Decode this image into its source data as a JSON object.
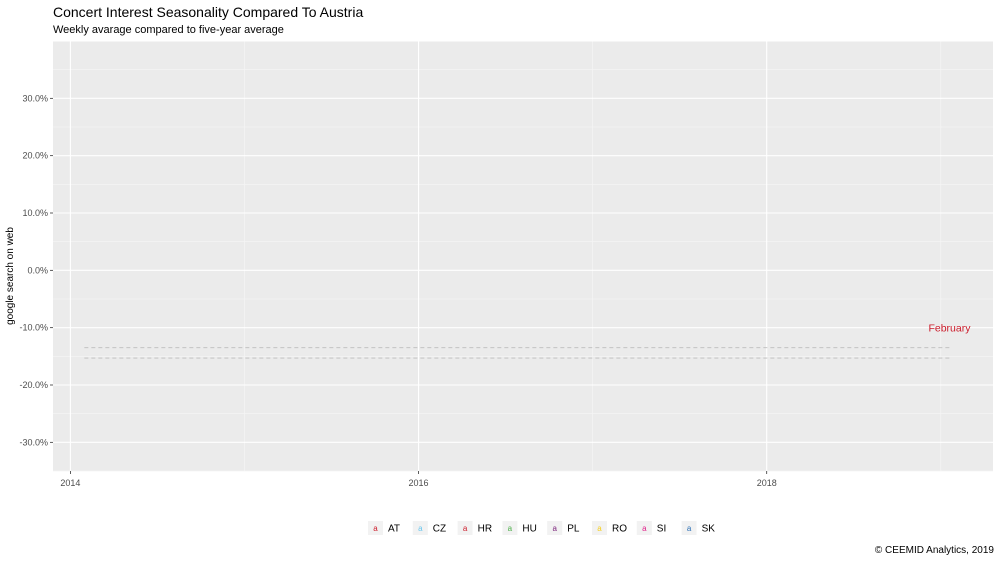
{
  "chart_data": {
    "type": "line",
    "title": "Concert Interest Seasonality Compared To Austria",
    "subtitle": "Weekly avarage compared to five-year average",
    "ylabel": "google search on web",
    "xlabel": "",
    "caption": "© CEEMID Analytics, 2019",
    "x_range": [
      2013.9,
      2019.3
    ],
    "ylim": [
      -35,
      40
    ],
    "x_ticks": [
      {
        "value": 2014,
        "label": "2014"
      },
      {
        "value": 2016,
        "label": "2016"
      },
      {
        "value": 2018,
        "label": "2018"
      }
    ],
    "y_ticks": [
      {
        "value": 30,
        "label": "30.0%"
      },
      {
        "value": 20,
        "label": "20.0%"
      },
      {
        "value": 10,
        "label": "10.0%"
      },
      {
        "value": 0,
        "label": "0.0%"
      },
      {
        "value": -10,
        "label": "-10.0%"
      },
      {
        "value": -20,
        "label": "-20.0%"
      },
      {
        "value": -30,
        "label": "-30.0%"
      }
    ],
    "grid": true,
    "legend_position": "bottom",
    "reference_lines": [
      {
        "y": -13.5,
        "x_start": 2014.08,
        "x_end": 2019.05,
        "style": "dashed",
        "color": "#bdbdbd"
      },
      {
        "y": -15.3,
        "x_start": 2014.08,
        "x_end": 2019.05,
        "style": "dashed",
        "color": "#bdbdbd"
      }
    ],
    "annotations": [
      {
        "text": "February",
        "x": 2019.05,
        "y": -10.7,
        "color": "#cc1b2a"
      }
    ],
    "series": [
      {
        "name": "AT",
        "color": "#cc1b2a",
        "values": []
      },
      {
        "name": "CZ",
        "color": "#6bc7ee",
        "values": []
      },
      {
        "name": "HR",
        "color": "#cc1b2a",
        "values": []
      },
      {
        "name": "HU",
        "color": "#4daf4a",
        "values": []
      },
      {
        "name": "PL",
        "color": "#7a1f7a",
        "values": []
      },
      {
        "name": "RO",
        "color": "#f5cf1c",
        "values": []
      },
      {
        "name": "SI",
        "color": "#e0218a",
        "values": []
      },
      {
        "name": "SK",
        "color": "#2a6fb5",
        "values": []
      }
    ],
    "legend_glyph": "a"
  }
}
